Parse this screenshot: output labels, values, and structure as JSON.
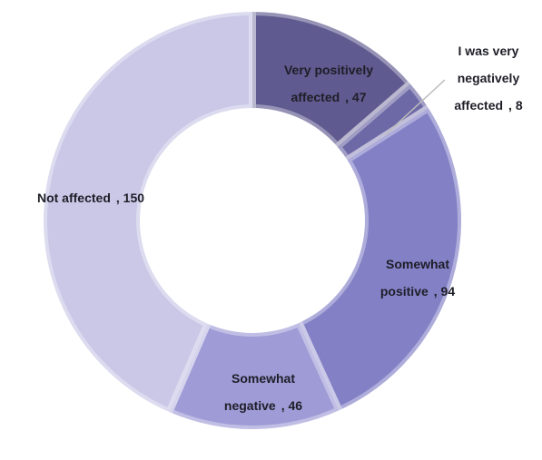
{
  "chart_data": {
    "type": "donut",
    "categories": [
      "Very positively affected",
      "I was very negatively affected",
      "Somewhat positive",
      "Somewhat negative",
      "Not affected"
    ],
    "values": [
      47,
      8,
      94,
      46,
      150
    ],
    "value_labels": [
      ", 47",
      ", 8",
      ", 94",
      ", 46",
      ", 150"
    ],
    "colors": [
      "#5f5a8f",
      "#6d69a7",
      "#8380c6",
      "#9e9bd6",
      "#cac8e6"
    ]
  }
}
